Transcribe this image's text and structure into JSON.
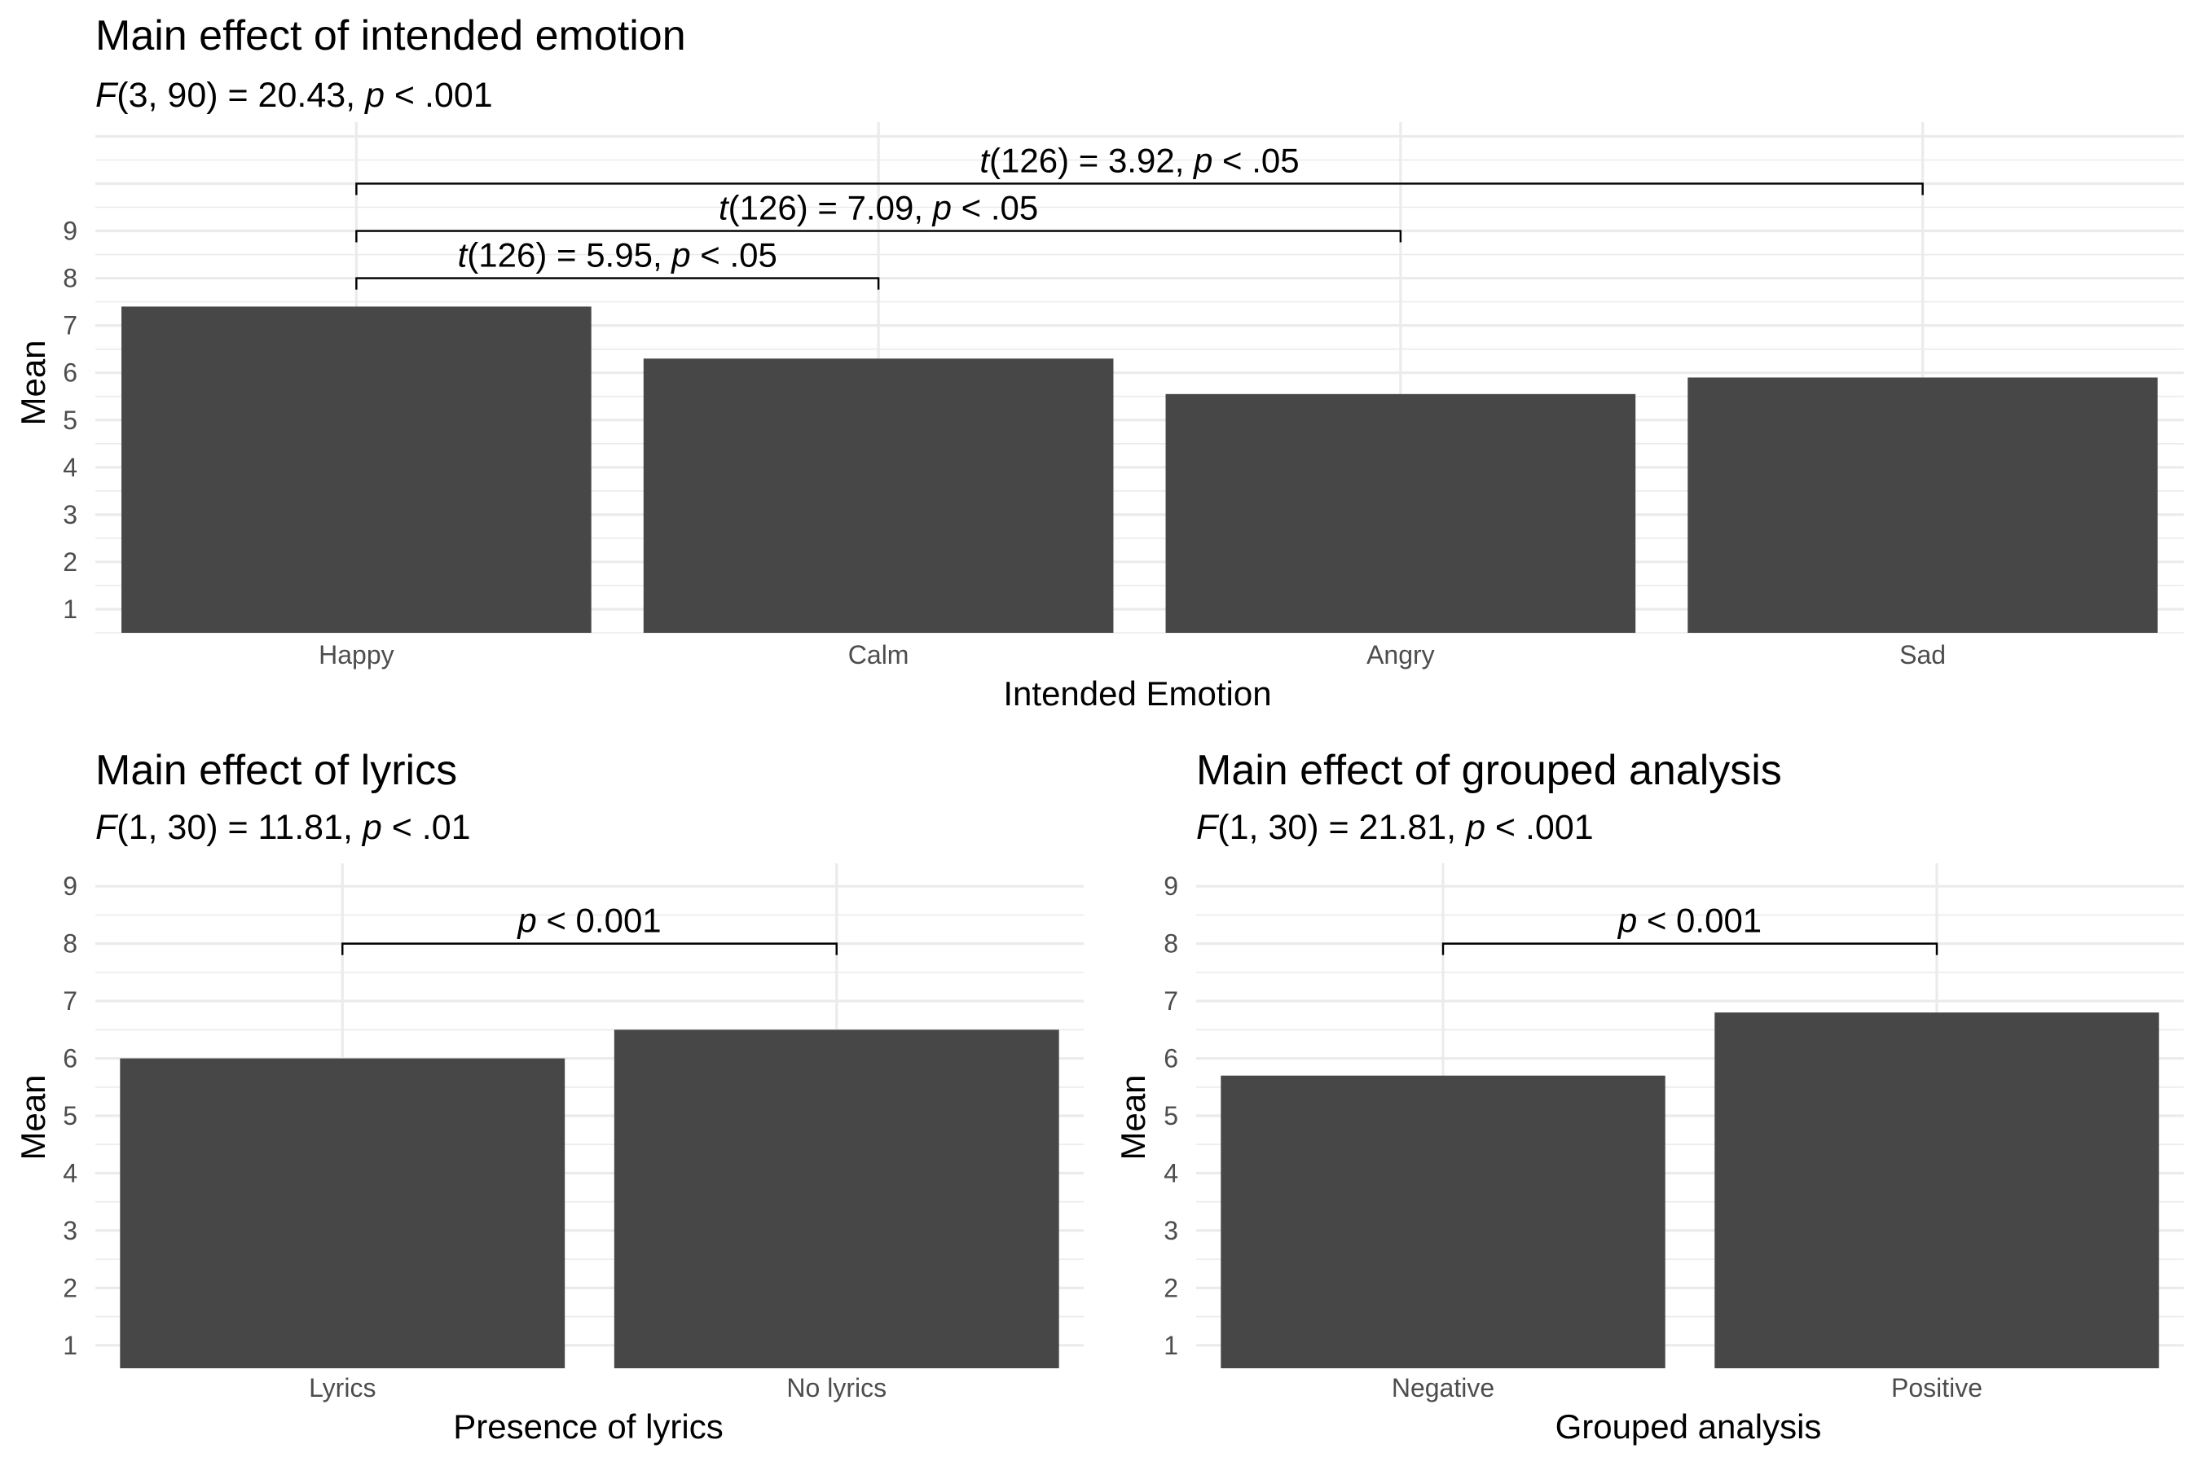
{
  "chart_data": [
    {
      "type": "bar",
      "title": "Main effect of intended emotion",
      "subtitle": {
        "stat": "F",
        "rest": "(3, 90) = 20.43, ",
        "p_symbol": "p",
        "p_rest": " < .001"
      },
      "xlabel": "Intended Emotion",
      "ylabel": "Mean",
      "categories": [
        "Happy",
        "Calm",
        "Angry",
        "Sad"
      ],
      "values": [
        7.4,
        6.3,
        5.55,
        5.9
      ],
      "ylim": [
        0.5,
        11.3
      ],
      "yticks": [
        1,
        2,
        3,
        4,
        5,
        6,
        7,
        8,
        9
      ],
      "grid": true,
      "annotations": [
        {
          "from": "Happy",
          "to": "Calm",
          "y": 8.0,
          "stat": "t",
          "df": "(126)",
          "eq": " = 5.95, ",
          "p_symbol": "p",
          "p_rest": " < .05"
        },
        {
          "from": "Happy",
          "to": "Angry",
          "y": 9.0,
          "stat": "t",
          "df": "(126)",
          "eq": " = 7.09, ",
          "p_symbol": "p",
          "p_rest": " < .05"
        },
        {
          "from": "Happy",
          "to": "Sad",
          "y": 10.0,
          "stat": "t",
          "df": "(126)",
          "eq": " = 3.92, ",
          "p_symbol": "p",
          "p_rest": " < .05"
        }
      ]
    },
    {
      "type": "bar",
      "title": "Main effect of lyrics",
      "subtitle": {
        "stat": "F",
        "rest": "(1, 30) = 11.81, ",
        "p_symbol": "p",
        "p_rest": " < .01"
      },
      "xlabel": "Presence of lyrics",
      "ylabel": "Mean",
      "categories": [
        "Lyrics",
        "No lyrics"
      ],
      "values": [
        6.0,
        6.5
      ],
      "ylim": [
        0.6,
        9.4
      ],
      "yticks": [
        1,
        2,
        3,
        4,
        5,
        6,
        7,
        8,
        9
      ],
      "grid": true,
      "annotations": [
        {
          "from": "Lyrics",
          "to": "No lyrics",
          "y": 8.0,
          "stat": "",
          "df": "",
          "eq": "",
          "p_symbol": "p",
          "p_rest": " < 0.001"
        }
      ]
    },
    {
      "type": "bar",
      "title": "Main effect of grouped analysis",
      "subtitle": {
        "stat": "F",
        "rest": "(1, 30) = 21.81, ",
        "p_symbol": "p",
        "p_rest": " < .001"
      },
      "xlabel": "Grouped analysis",
      "ylabel": "Mean",
      "categories": [
        "Negative",
        "Positive"
      ],
      "values": [
        5.7,
        6.8
      ],
      "ylim": [
        0.6,
        9.4
      ],
      "yticks": [
        1,
        2,
        3,
        4,
        5,
        6,
        7,
        8,
        9
      ],
      "grid": true,
      "annotations": [
        {
          "from": "Negative",
          "to": "Positive",
          "y": 8.0,
          "stat": "",
          "df": "",
          "eq": "",
          "p_symbol": "p",
          "p_rest": " < 0.001"
        }
      ]
    }
  ]
}
